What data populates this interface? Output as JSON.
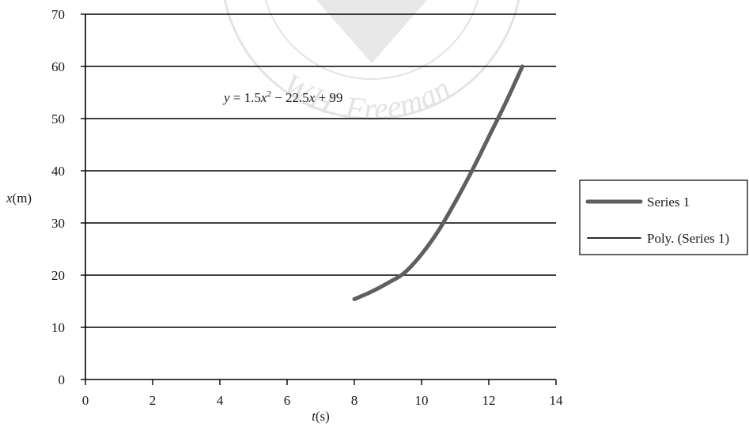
{
  "chart_data": {
    "type": "line",
    "xlabel_var": "t",
    "xlabel_unit": "(s)",
    "ylabel_var": "x",
    "ylabel_unit": "(m)",
    "xlim": [
      0,
      14
    ],
    "ylim": [
      0,
      70
    ],
    "x_ticks": [
      "0",
      "2",
      "4",
      "6",
      "8",
      "10",
      "12",
      "14"
    ],
    "y_ticks": [
      "0",
      "10",
      "20",
      "30",
      "40",
      "50",
      "60",
      "70"
    ],
    "grid": "horizontal",
    "legend_position": "right",
    "equation": {
      "parts": [
        {
          "text": "y",
          "italic": true
        },
        {
          "text": " = 1.5",
          "italic": false
        },
        {
          "text": "x",
          "italic": true
        },
        {
          "text": "2",
          "italic": false,
          "sup": true
        },
        {
          "text": " − 22.5",
          "italic": false
        },
        {
          "text": "x",
          "italic": true
        },
        {
          "text": " + 99",
          "italic": false
        }
      ]
    },
    "series": [
      {
        "name": "Series 1",
        "color": "#5f5f5f",
        "line_width": "thick",
        "x": [
          8,
          8.5,
          9,
          9.5,
          10,
          10.5,
          11,
          11.5,
          12,
          12.5,
          13
        ],
        "y": [
          15.4,
          16.8,
          18.5,
          20.5,
          24,
          28.5,
          34,
          40,
          46.5,
          53,
          60
        ]
      },
      {
        "name": "Poly. (Series 1)",
        "color": "#111111",
        "line_width": "thin",
        "x": [],
        "y": []
      }
    ]
  },
  "watermark": {
    "text": "W.H. Freeman",
    "color": "#e3e3e3"
  }
}
